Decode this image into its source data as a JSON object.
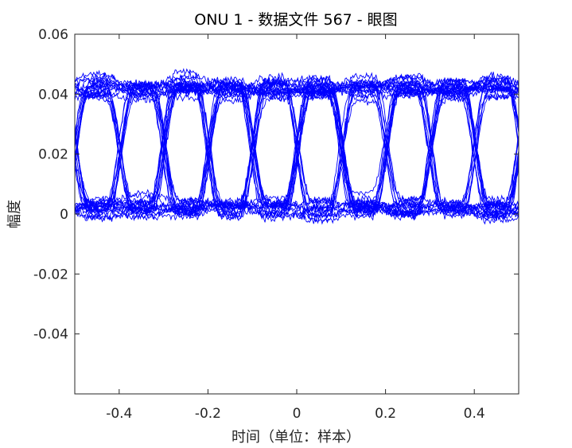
{
  "chart_data": {
    "type": "line",
    "title": "ONU 1 - 数据文件 567 - 眼图",
    "xlabel": "时间（单位：样本）",
    "ylabel": "幅度",
    "xlim": [
      -0.5,
      0.5
    ],
    "ylim": [
      -0.06,
      0.06
    ],
    "xticks": [
      -0.4,
      -0.2,
      0,
      0.2,
      0.4
    ],
    "xtick_labels": [
      "-0.4",
      "-0.2",
      "0",
      "0.2",
      "0.4"
    ],
    "yticks": [
      -0.04,
      -0.02,
      0,
      0.02,
      0.04,
      0.06
    ],
    "ytick_labels": [
      "-0.04",
      "-0.02",
      "0",
      "0.02",
      "0.04",
      "0.06"
    ],
    "grid": false,
    "line_color": "#0000ff",
    "eye_pattern": {
      "high_level": 0.042,
      "low_level": 0.002,
      "crossing_level": 0.022,
      "max_peak": 0.055,
      "min_trough": -0.008,
      "symbols_across_window": 10,
      "approx_trace_count": 40
    }
  }
}
